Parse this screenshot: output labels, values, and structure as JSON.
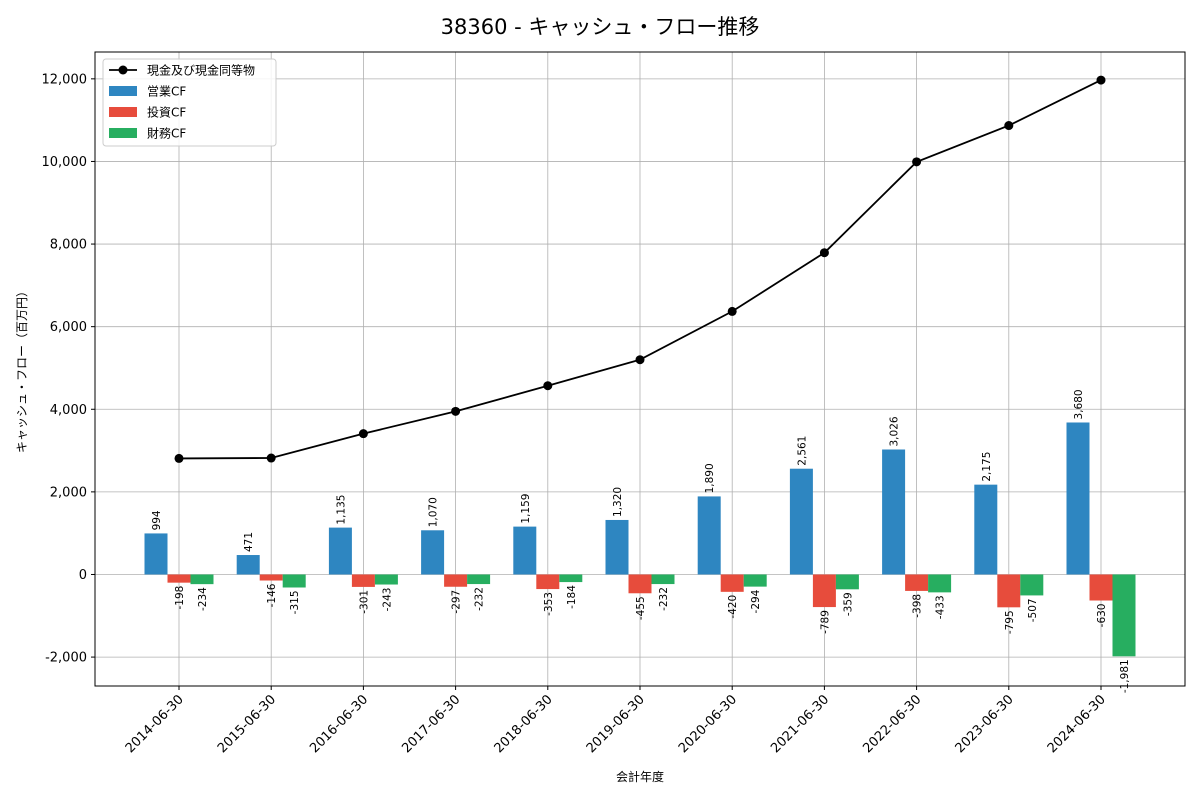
{
  "chart_data": {
    "type": "bar",
    "title": "38360 - キャッシュ・フロー推移",
    "xlabel": "会計年度",
    "ylabel": "キャッシュ・フロー（百万円）",
    "ylim": [
      -2700,
      12650
    ],
    "yticks": [
      -2000,
      0,
      2000,
      4000,
      6000,
      8000,
      10000,
      12000
    ],
    "ytick_labels": [
      "-2,000",
      "0",
      "2,000",
      "4,000",
      "6,000",
      "8,000",
      "10,000",
      "12,000"
    ],
    "grid": true,
    "legend_position": "top-left",
    "categories": [
      "2014-06-30",
      "2015-06-30",
      "2016-06-30",
      "2017-06-30",
      "2018-06-30",
      "2019-06-30",
      "2020-06-30",
      "2021-06-30",
      "2022-06-30",
      "2023-06-30",
      "2024-06-30"
    ],
    "series": [
      {
        "name": "現金及び現金同等物",
        "kind": "line",
        "color": "#000000",
        "values": [
          2810,
          2820,
          3410,
          3950,
          4570,
          5200,
          6370,
          7790,
          9990,
          10870,
          11970
        ]
      },
      {
        "name": "営業CF",
        "kind": "bar",
        "color": "#2E86C1",
        "values": [
          994,
          471,
          1135,
          1070,
          1159,
          1320,
          1890,
          2561,
          3026,
          2175,
          3680
        ],
        "labels": [
          "994",
          "471",
          "1,135",
          "1,070",
          "1,159",
          "1,320",
          "1,890",
          "2,561",
          "3,026",
          "2,175",
          "3,680"
        ]
      },
      {
        "name": "投資CF",
        "kind": "bar",
        "color": "#E74C3C",
        "values": [
          -198,
          -146,
          -301,
          -297,
          -353,
          -455,
          -420,
          -789,
          -398,
          -795,
          -630
        ],
        "labels": [
          "-198",
          "-146",
          "-301",
          "-297",
          "-353",
          "-455",
          "-420",
          "-789",
          "-398",
          "-795",
          "-630"
        ]
      },
      {
        "name": "財務CF",
        "kind": "bar",
        "color": "#27AE60",
        "values": [
          -234,
          -315,
          -243,
          -232,
          -184,
          -232,
          -294,
          -359,
          -433,
          -507,
          -1981
        ],
        "labels": [
          "-234",
          "-315",
          "-243",
          "-232",
          "-184",
          "-232",
          "-294",
          "-359",
          "-433",
          "-507",
          "-1,981"
        ]
      }
    ]
  }
}
